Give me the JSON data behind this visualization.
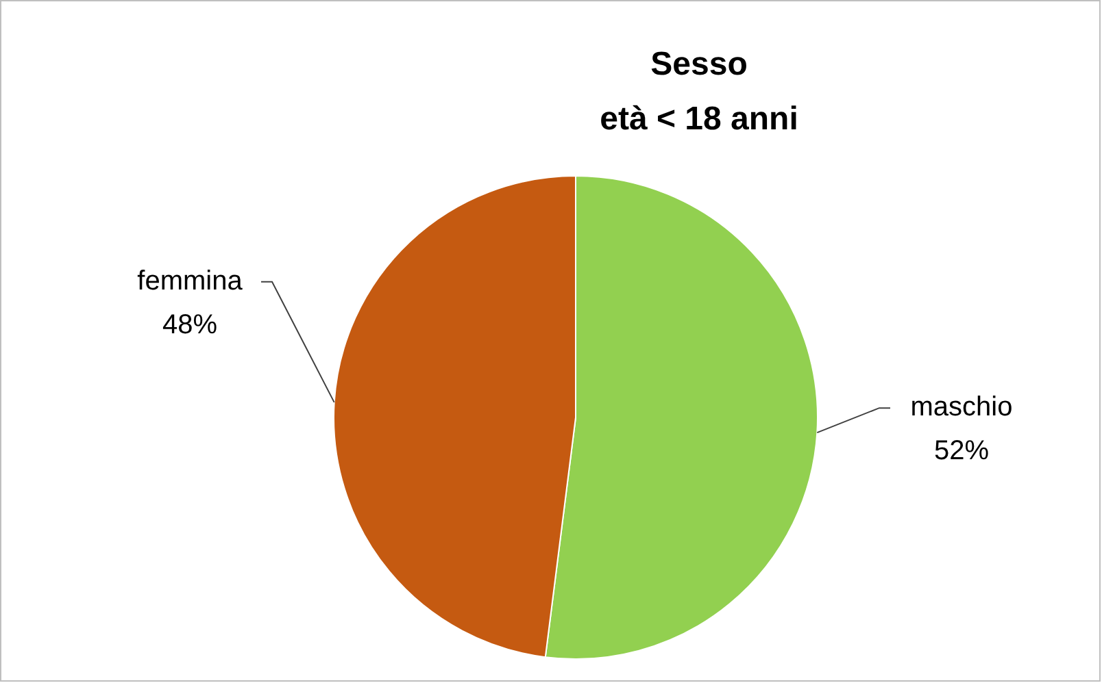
{
  "chart_data": {
    "type": "pie",
    "title": "Sesso",
    "subtitle": "età < 18 anni",
    "categories": [
      "maschio",
      "femmina"
    ],
    "values": [
      52,
      48
    ],
    "colors": [
      "#92d050",
      "#c55a11"
    ],
    "value_labels": [
      "52%",
      "48%"
    ],
    "legend": false
  }
}
